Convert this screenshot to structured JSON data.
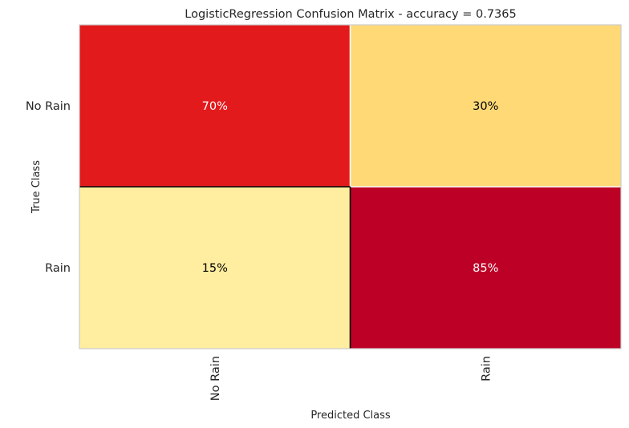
{
  "chart_data": {
    "type": "heatmap",
    "title": "LogisticRegression Confusion Matrix - accuracy = 0.7365",
    "xlabel": "Predicted Class",
    "ylabel": "True Class",
    "x_categories": [
      "No Rain",
      "Rain"
    ],
    "y_categories": [
      "No Rain",
      "Rain"
    ],
    "values": [
      [
        70,
        30
      ],
      [
        15,
        85
      ]
    ],
    "cell_labels": [
      [
        "70%",
        "30%"
      ],
      [
        "15%",
        "85%"
      ]
    ],
    "colormap": "YlOrRd",
    "cell_colors": [
      [
        "#e31a1c",
        "#fed976"
      ],
      [
        "#ffeda0",
        "#bd0026"
      ]
    ],
    "cell_text_colors": [
      [
        "#ffffff",
        "#000000"
      ],
      [
        "#000000",
        "#ffffff"
      ]
    ],
    "grid": false,
    "legend": "none"
  }
}
